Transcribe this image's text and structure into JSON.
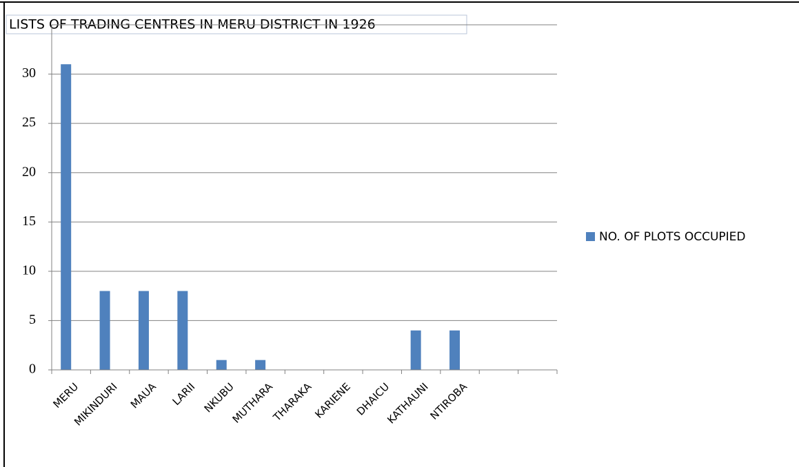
{
  "chart_data": {
    "type": "bar",
    "title": "LISTS OF TRADING CENTRES IN MERU DISTRICT IN 1926",
    "categories": [
      "MERU",
      "MIKINDURI",
      "MAUA",
      "LARII",
      "NKUBU",
      "MUTHARA",
      "THARAKA",
      "KARIENE",
      "DHAICU",
      "KATHAUNI",
      "NTIROBA",
      null,
      null
    ],
    "series": [
      {
        "name": "NO. OF PLOTS OCCUPIED",
        "color": "#4f81bd",
        "values": [
          31,
          8,
          8,
          8,
          1,
          1,
          null,
          null,
          null,
          4,
          4,
          null,
          null
        ]
      }
    ],
    "ylim": [
      0,
      35
    ],
    "yticks": [
      0,
      5,
      10,
      15,
      20,
      25,
      30
    ],
    "grid": true,
    "legend": "right"
  }
}
